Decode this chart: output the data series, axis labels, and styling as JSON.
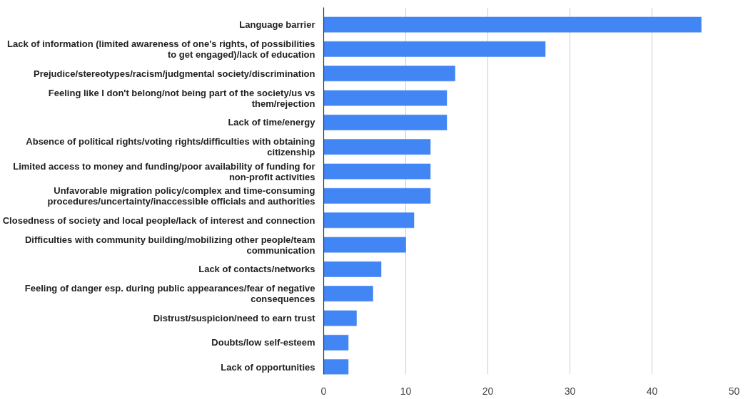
{
  "chart_data": {
    "type": "bar",
    "orientation": "horizontal",
    "categories": [
      "Language barrier",
      "Lack of information (limited awareness of one's rights, of possibilities to get engaged)/lack of education",
      "Prejudice/stereotypes/racism/judgmental society/discrimination",
      "Feeling like I don't belong/not being part of the society/us vs them/rejection",
      "Lack of time/energy",
      "Absence of political rights/voting rights/difficulties with obtaining citizenship",
      "Limited access to money and funding/poor availability of funding for non-profit activities",
      "Unfavorable migration policy/complex and time-consuming procedures/uncertainty/inaccessible officials and authorities",
      "Closedness of society and local people/lack of interest and connection",
      "Difficulties with community building/mobilizing other people/team communication",
      "Lack of contacts/networks",
      "Feeling of danger esp. during public appearances/fear of negative consequences",
      "Distrust/suspicion/need to earn trust",
      "Doubts/low self-esteem",
      "Lack of opportunities"
    ],
    "values": [
      46,
      27,
      16,
      15,
      15,
      13,
      13,
      13,
      11,
      10,
      7,
      6,
      4,
      3,
      3
    ],
    "color": "#4285f4",
    "xlim": [
      0,
      50
    ],
    "xticks": [
      0,
      10,
      20,
      30,
      40,
      50
    ],
    "grid": "x"
  }
}
